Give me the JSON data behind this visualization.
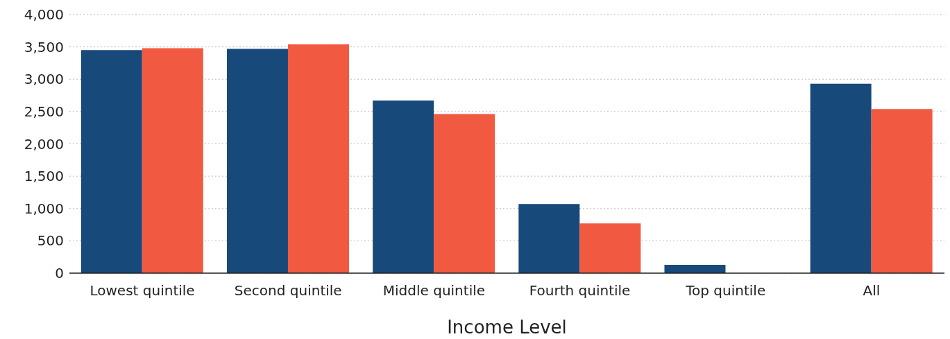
{
  "chart_data": {
    "type": "bar",
    "xlabel": "Income Level",
    "categories": [
      "Lowest quintile",
      "Second quintile",
      "Middle quintile",
      "Fourth quintile",
      "Top quintile",
      "All"
    ],
    "series": [
      {
        "color": "#17497a",
        "values": [
          3450,
          3470,
          2670,
          1070,
          130,
          2930
        ]
      },
      {
        "color": "#f15a40",
        "values": [
          3480,
          3540,
          2460,
          770,
          0,
          2540
        ]
      }
    ],
    "ylim": [
      0,
      4000
    ],
    "yticks": [
      0,
      500,
      {
        "value": 1000,
        "label": "1,000"
      },
      {
        "value": 1500,
        "label": "1,500"
      },
      {
        "value": 2000,
        "label": "2,000"
      },
      {
        "value": 2500,
        "label": "2,500"
      },
      {
        "value": 3000,
        "label": "3,000"
      },
      {
        "value": 3500,
        "label": "3,500"
      },
      {
        "value": 4000,
        "label": "4,000"
      }
    ],
    "grid": "y"
  }
}
